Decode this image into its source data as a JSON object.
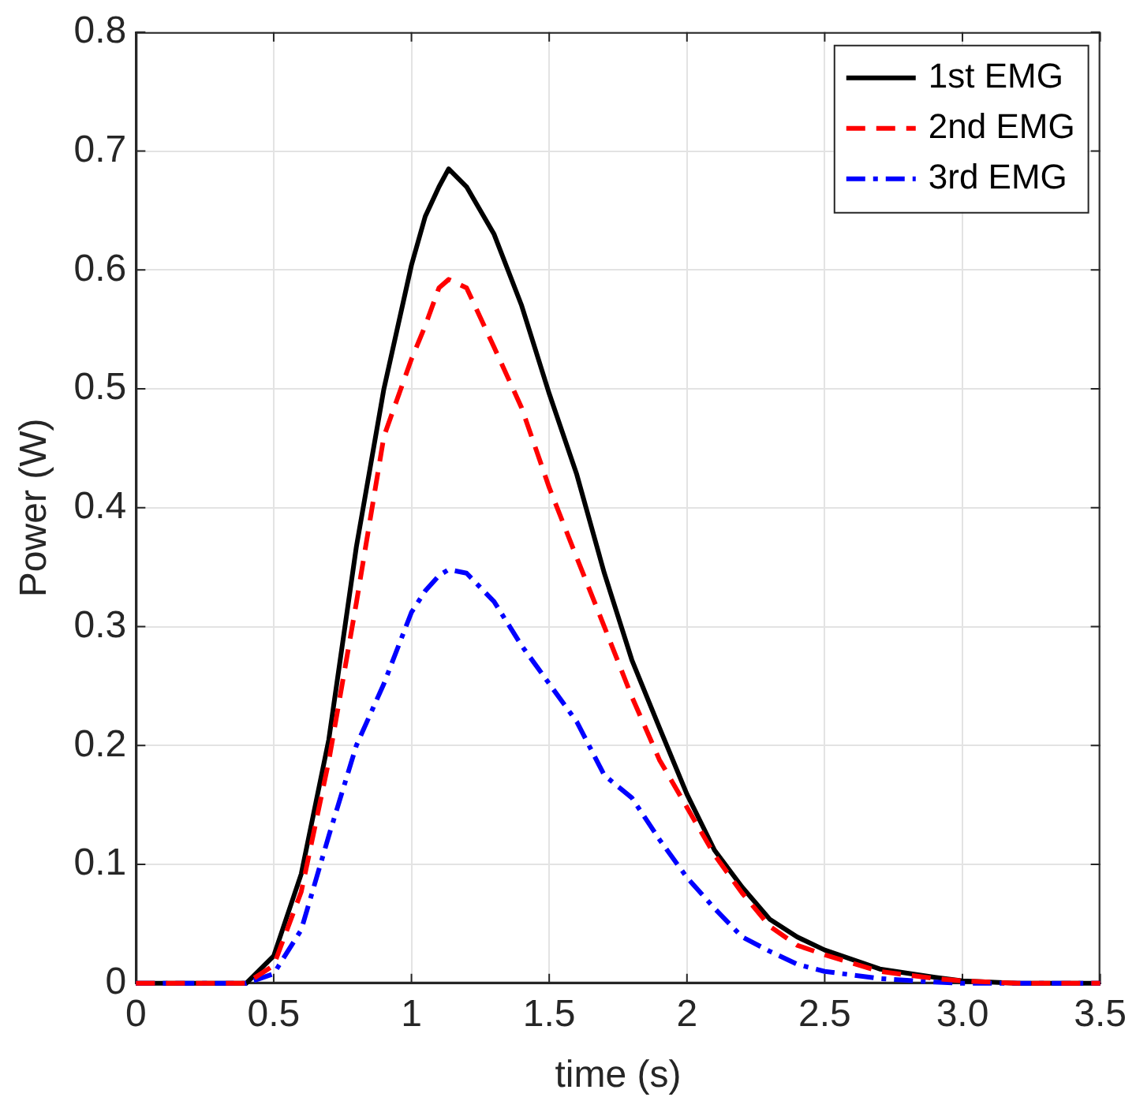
{
  "chart_data": {
    "type": "line",
    "xlabel": "time (s)",
    "ylabel": "Power (W)",
    "xlim": [
      0,
      3.5
    ],
    "xticks": [
      0,
      0.5,
      1,
      1.5,
      2,
      2.5,
      {
        "value": 3,
        "label": "3.0"
      },
      3.5
    ],
    "ylim": [
      0,
      0.8
    ],
    "yticks": [
      0,
      0.1,
      0.2,
      0.3,
      0.4,
      0.5,
      0.6,
      0.7,
      0.8
    ],
    "grid": true,
    "legend": "top right",
    "marker": "none",
    "x": [
      0,
      0.4,
      0.5,
      0.6,
      0.7,
      0.8,
      0.9,
      1.0,
      1.05,
      1.1,
      1.135,
      1.2,
      1.3,
      1.4,
      1.5,
      1.6,
      1.7,
      1.8,
      1.9,
      2.0,
      2.1,
      2.2,
      2.3,
      2.4,
      2.5,
      2.7,
      2.9,
      3.0,
      3.2,
      3.5
    ],
    "series": [
      {
        "name": "1st EMG",
        "color": "#000000",
        "line_style": "solid",
        "values": [
          0,
          0,
          0.023,
          0.092,
          0.205,
          0.367,
          0.5,
          0.604,
          0.645,
          0.67,
          0.685,
          0.67,
          0.63,
          0.57,
          0.496,
          0.428,
          0.345,
          0.272,
          0.215,
          0.159,
          0.112,
          0.081,
          0.054,
          0.039,
          0.028,
          0.012,
          0.005,
          0.002,
          0,
          0
        ]
      },
      {
        "name": "2nd EMG",
        "color": "#ff0000",
        "line_style": "dashed",
        "values": [
          0,
          0,
          0.015,
          0.077,
          0.187,
          0.32,
          0.46,
          0.525,
          0.553,
          0.585,
          0.592,
          0.585,
          0.535,
          0.484,
          0.417,
          0.358,
          0.3,
          0.241,
          0.188,
          0.148,
          0.108,
          0.076,
          0.048,
          0.032,
          0.024,
          0.01,
          0.004,
          0.002,
          0,
          0
        ]
      },
      {
        "name": "3rd EMG",
        "color": "#0000ff",
        "line_style": "dashdot",
        "values": [
          0,
          0,
          0.008,
          0.045,
          0.124,
          0.2,
          0.252,
          0.312,
          0.33,
          0.343,
          0.348,
          0.345,
          0.321,
          0.284,
          0.252,
          0.22,
          0.175,
          0.156,
          0.121,
          0.089,
          0.063,
          0.039,
          0.027,
          0.016,
          0.01,
          0.004,
          0.001,
          0,
          0,
          0
        ]
      }
    ]
  }
}
